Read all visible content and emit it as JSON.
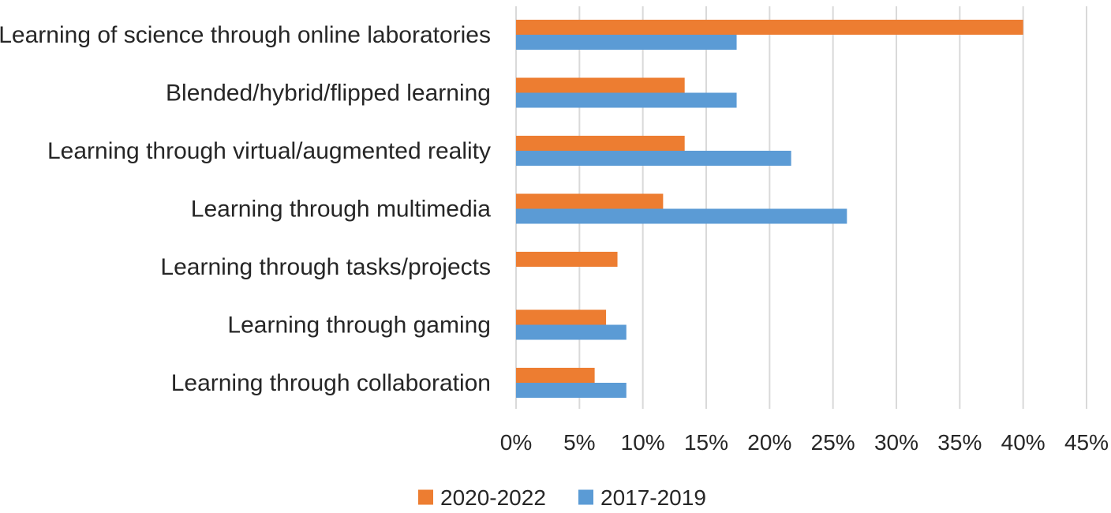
{
  "chart_data": {
    "type": "bar",
    "orientation": "horizontal",
    "title": "",
    "xlabel": "",
    "ylabel": "",
    "categories": [
      "Learning of science through online laboratories",
      "Blended/hybrid/flipped learning",
      "Learning through virtual/augmented reality",
      "Learning through multimedia",
      "Learning through tasks/projects",
      "Learning through gaming",
      "Learning through collaboration"
    ],
    "series": [
      {
        "name": "2020-2022",
        "color": "#ED7D31",
        "values": [
          40.0,
          13.3,
          13.3,
          11.6,
          8.0,
          7.1,
          6.2
        ]
      },
      {
        "name": "2017-2019",
        "color": "#5B9BD5",
        "values": [
          17.4,
          17.4,
          21.7,
          26.1,
          0,
          8.7,
          8.7
        ]
      }
    ],
    "xlim": [
      0,
      45
    ],
    "xticks": [
      0,
      5,
      10,
      15,
      20,
      25,
      30,
      35,
      40,
      45
    ],
    "tick_labels": [
      "0%",
      "5%",
      "10%",
      "15%",
      "20%",
      "25%",
      "30%",
      "35%",
      "40%",
      "45%"
    ],
    "grid": true,
    "grid_color": "#D9D9D9",
    "legend_position": "bottom",
    "legend": [
      "2020-2022",
      "2017-2019"
    ]
  }
}
